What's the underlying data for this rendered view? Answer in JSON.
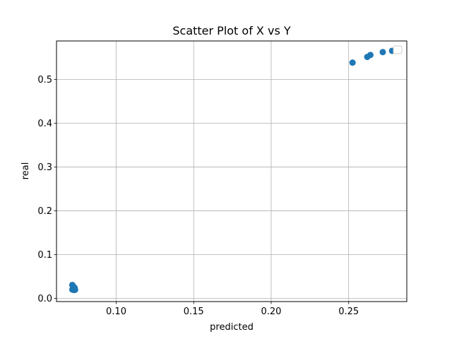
{
  "chart_data": {
    "type": "scatter",
    "title": "Scatter Plot of X vs Y",
    "xlabel": "predicted",
    "ylabel": "real",
    "xlim": [
      0.0615,
      0.2875
    ],
    "ylim": [
      -0.0075,
      0.588
    ],
    "xticks": [
      0.1,
      0.15,
      0.2,
      0.25
    ],
    "xtick_labels": [
      "0.10",
      "0.15",
      "0.20",
      "0.25"
    ],
    "yticks": [
      0.0,
      0.1,
      0.2,
      0.3,
      0.4,
      0.5
    ],
    "ytick_labels": [
      "0.0",
      "0.1",
      "0.2",
      "0.3",
      "0.4",
      "0.5"
    ],
    "grid": true,
    "legend": {
      "placement": "top-right",
      "entries": []
    },
    "marker_color": "#1f77b4",
    "points": [
      {
        "x": 0.0717,
        "y": 0.0305
      },
      {
        "x": 0.0722,
        "y": 0.028
      },
      {
        "x": 0.0727,
        "y": 0.025
      },
      {
        "x": 0.0732,
        "y": 0.024
      },
      {
        "x": 0.0717,
        "y": 0.02
      },
      {
        "x": 0.0722,
        "y": 0.0195
      },
      {
        "x": 0.073,
        "y": 0.019
      },
      {
        "x": 0.0735,
        "y": 0.0195
      },
      {
        "x": 0.2525,
        "y": 0.5385
      },
      {
        "x": 0.262,
        "y": 0.5515
      },
      {
        "x": 0.264,
        "y": 0.556
      },
      {
        "x": 0.272,
        "y": 0.5625
      },
      {
        "x": 0.278,
        "y": 0.5655
      }
    ]
  }
}
